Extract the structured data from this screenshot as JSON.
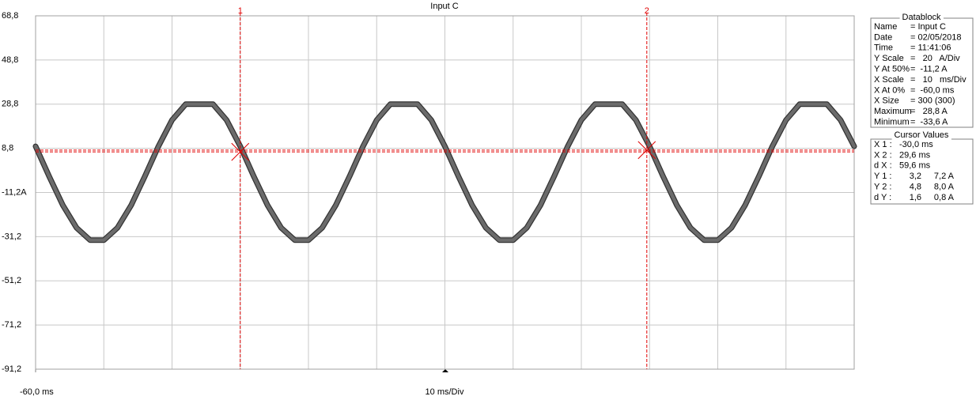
{
  "chart_data": {
    "type": "line",
    "title": "Input C",
    "x_label": "10 ms/Div",
    "xlim": [
      -60,
      60
    ],
    "xticks": [
      {
        "value": -60,
        "label": "-60,0 ms"
      }
    ],
    "xgrid": [
      -60,
      -50,
      -40,
      -30,
      -20,
      -10,
      0,
      10,
      20,
      30,
      40,
      50,
      60
    ],
    "ylim": [
      -91.2,
      68.8
    ],
    "yticks": [
      {
        "value": 68.8,
        "label": "68,8"
      },
      {
        "value": 48.8,
        "label": "48,8"
      },
      {
        "value": 28.8,
        "label": "28,8"
      },
      {
        "value": 8.8,
        "label": "8,8"
      },
      {
        "value": -11.2,
        "label": "-11,2A"
      },
      {
        "value": -31.2,
        "label": "-31,2"
      },
      {
        "value": -51.2,
        "label": "-51,2"
      },
      {
        "value": -71.2,
        "label": "-71,2"
      },
      {
        "value": -91.2,
        "label": "-91,2"
      }
    ],
    "grid": true,
    "color": "#6b6b6b",
    "x": [
      -60,
      -58,
      -56,
      -54,
      -52,
      -50,
      -48,
      -46,
      -44,
      -42,
      -40,
      -38,
      -36,
      -34,
      -32,
      -30,
      -28,
      -26,
      -24,
      -22,
      -20,
      -18,
      -16,
      -14,
      -12,
      -10,
      -8,
      -6,
      -4,
      -2,
      0,
      2,
      4,
      6,
      8,
      10,
      12,
      14,
      16,
      18,
      20,
      22,
      24,
      26,
      28,
      30,
      32,
      34,
      36,
      38,
      40,
      42,
      44,
      46,
      48,
      50,
      52,
      54,
      56,
      58,
      60
    ],
    "values": [
      9.7,
      -4.0,
      -17.0,
      -27.2,
      -32.8,
      -32.8,
      -27.2,
      -17.0,
      -4.0,
      9.7,
      21.6,
      28.8,
      28.8,
      28.8,
      21.6,
      9.7,
      -4.0,
      -17.0,
      -27.2,
      -32.8,
      -32.8,
      -27.2,
      -17.0,
      -4.0,
      9.7,
      21.6,
      28.8,
      28.8,
      28.8,
      21.6,
      9.7,
      -4.0,
      -17.0,
      -27.2,
      -32.8,
      -32.8,
      -27.2,
      -17.0,
      -4.0,
      9.7,
      21.6,
      28.8,
      28.8,
      28.8,
      21.6,
      9.7,
      -4.0,
      -17.0,
      -27.2,
      -32.8,
      -32.8,
      -27.2,
      -17.0,
      -4.0,
      9.7,
      21.6,
      28.8,
      28.8,
      28.8,
      21.6,
      9.7
    ],
    "cursor_color": "#e00000",
    "cursors": [
      {
        "label": "1",
        "x": -30,
        "y": 7.2
      },
      {
        "label": "2",
        "x": 29.6,
        "y": 8.0
      }
    ]
  },
  "datablock": {
    "title": "Datablock",
    "rows": [
      [
        "Name",
        "= Input C"
      ],
      [
        "Date",
        "= 02/05/2018"
      ],
      [
        "Time",
        "= 11:41:06"
      ],
      [
        "Y Scale",
        "=   20   A/Div"
      ],
      [
        "Y At 50%",
        "=  -11,2 A"
      ],
      [
        "X Scale",
        "=   10   ms/Div"
      ],
      [
        "X At 0%",
        "=  -60,0 ms"
      ],
      [
        "X Size",
        "= 300 (300)"
      ],
      [
        "Maximum",
        "=   28,8 A"
      ],
      [
        "Minimum",
        "=  -33,6 A"
      ]
    ]
  },
  "cursor_values": {
    "title": "Cursor Values",
    "rows": [
      [
        "X 1 :",
        "-30,0 ms"
      ],
      [
        "X 2 :",
        "29,6 ms"
      ],
      [
        "d X :",
        "59,6 ms"
      ],
      [
        "Y 1 :",
        "3,2",
        "7,2 A"
      ],
      [
        "Y 2 :",
        "4,8",
        "8,0 A"
      ],
      [
        "d Y :",
        "1,6",
        "0,8 A"
      ]
    ]
  }
}
